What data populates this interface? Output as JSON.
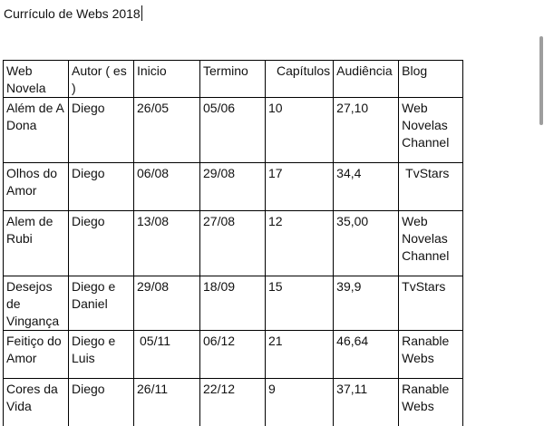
{
  "document": {
    "title": "Currículo de Webs 2018"
  },
  "table": {
    "headers": [
      "Web Novela",
      "Autor ( es )",
      "Inicio",
      "Termino",
      "Capítulos",
      "Audiência",
      "Blog"
    ],
    "rows": [
      [
        "Além de A Dona",
        "Diego",
        "26/05",
        "05/06",
        "10",
        "27,10",
        "Web Novelas Channel"
      ],
      [
        "Olhos do Amor",
        "Diego",
        "06/08",
        "29/08",
        "17",
        "34,4",
        "TvStars"
      ],
      [
        "Alem de Rubi",
        "Diego",
        "13/08",
        "27/08",
        "12",
        "35,00",
        "Web Novelas Channel"
      ],
      [
        "Desejos de Vingança",
        "Diego e Daniel",
        "29/08",
        "18/09",
        "15",
        "39,9",
        "TvStars"
      ],
      [
        "Feitiço do Amor",
        "Diego e Luis",
        "05/11",
        "06/12",
        "21",
        "46,64",
        "Ranable Webs"
      ],
      [
        "Cores da Vida",
        "Diego",
        "26/11",
        "22/12",
        "9",
        "37,11",
        "Ranable Webs"
      ]
    ]
  }
}
